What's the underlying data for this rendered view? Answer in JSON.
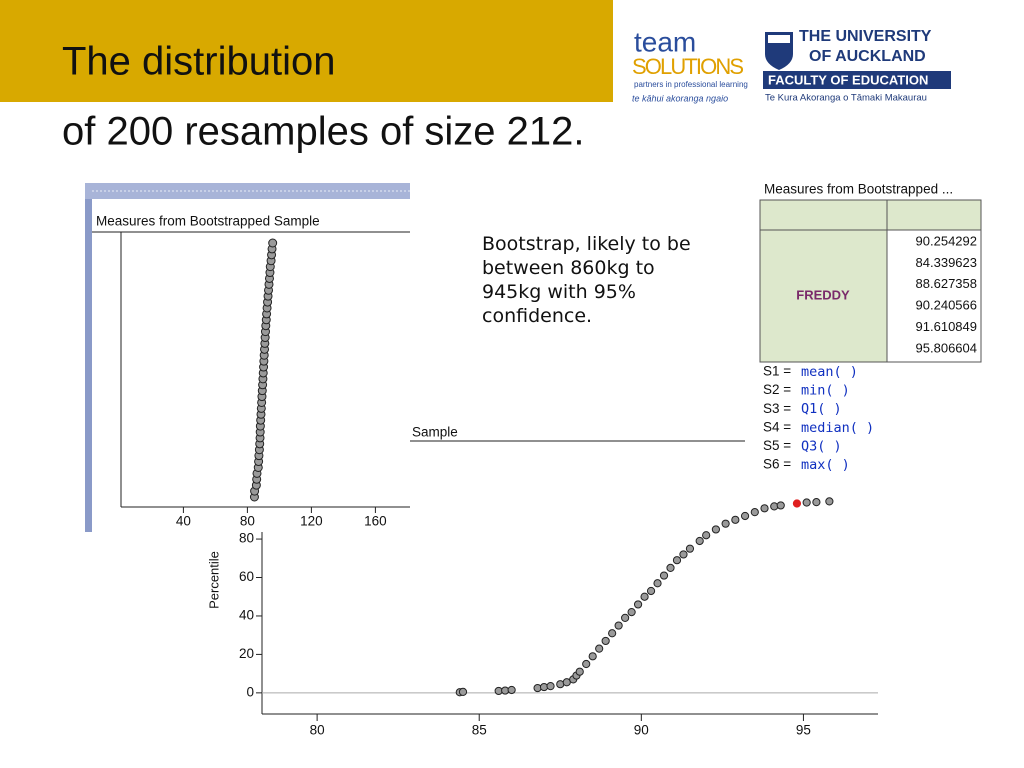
{
  "header": {
    "title_lines": [
      "The distribution",
      "of 200 resamples of size 212."
    ]
  },
  "logos": {
    "team": [
      "team",
      "SOLUTIONS",
      "partners in professional learning",
      "te kāhui akoranga ngaio"
    ],
    "university": [
      "THE UNIVERSITY",
      "OF AUCKLAND",
      "FACULTY OF EDUCATION",
      "Te Kura Akoranga o Tāmaki Makaurau"
    ]
  },
  "note": "Bootstrap, likely to be between 860kg to 945kg with 95% confidence.",
  "table": {
    "title": "Measures from Bootstrapped ...",
    "row_label": "FREDDY",
    "values": [
      90.254292,
      84.339623,
      88.627358,
      90.240566,
      91.610849,
      95.806604
    ]
  },
  "formulas": [
    {
      "name": "S1 =",
      "func": "mean(  )"
    },
    {
      "name": "S2 =",
      "func": "min(  )"
    },
    {
      "name": "S3 =",
      "func": "Q1(  )"
    },
    {
      "name": "S4 =",
      "func": "median(  )"
    },
    {
      "name": "S5 =",
      "func": "Q3(  )"
    },
    {
      "name": "S6 =",
      "func": "max(  )"
    }
  ],
  "chart_data": [
    {
      "type": "dot",
      "title": "Measures from Bootstrapped Sample",
      "color": "#9a9a9a",
      "values": [
        84.4,
        84.5,
        85.6,
        85.8,
        86,
        86.8,
        87,
        87.2,
        87.5,
        87.7,
        87.9,
        88,
        88.1,
        88.3,
        88.5,
        88.7,
        88.9,
        89.1,
        89.3,
        89.5,
        89.7,
        89.9,
        90.1,
        90.3,
        90.5,
        90.7,
        90.9,
        91.1,
        91.3,
        91.5,
        91.8,
        92,
        92.3,
        92.6,
        92.9,
        93.2,
        93.5,
        93.8,
        94.1,
        94.3,
        94.8,
        95.1,
        95.4,
        95.8
      ],
      "xlim": [
        1,
        181
      ],
      "xticks": [
        40,
        80,
        120,
        160
      ]
    },
    {
      "type": "scatter",
      "title": "Sample",
      "y_label": "Percentile",
      "color": "#9a9a9a",
      "highlight_color": "#e02020",
      "highlight_index": 40,
      "x": [
        84.4,
        84.5,
        85.6,
        85.8,
        86,
        86.8,
        87,
        87.2,
        87.5,
        87.7,
        87.9,
        88,
        88.1,
        88.3,
        88.5,
        88.7,
        88.9,
        89.1,
        89.3,
        89.5,
        89.7,
        89.9,
        90.1,
        90.3,
        90.5,
        90.7,
        90.9,
        91.1,
        91.3,
        91.5,
        91.8,
        92,
        92.3,
        92.6,
        92.9,
        93.2,
        93.5,
        93.8,
        94.1,
        94.3,
        94.8,
        95.1,
        95.4,
        95.8
      ],
      "values": [
        0.3,
        0.5,
        1,
        1.2,
        1.5,
        2.5,
        3,
        3.5,
        4.5,
        5.5,
        7,
        9,
        11,
        15,
        19,
        23,
        27,
        31,
        35,
        39,
        42,
        46,
        50,
        53,
        57,
        61,
        65,
        69,
        72,
        75,
        79,
        82,
        85,
        88,
        90,
        92,
        94,
        96,
        97,
        97.5,
        98.5,
        99,
        99.2,
        99.6
      ],
      "xlim": [
        78.3,
        97.3
      ],
      "ylim": [
        -11,
        105
      ],
      "xticks": [
        80,
        85,
        90,
        95
      ],
      "yticks": [
        0,
        20,
        40,
        60,
        80
      ]
    }
  ]
}
